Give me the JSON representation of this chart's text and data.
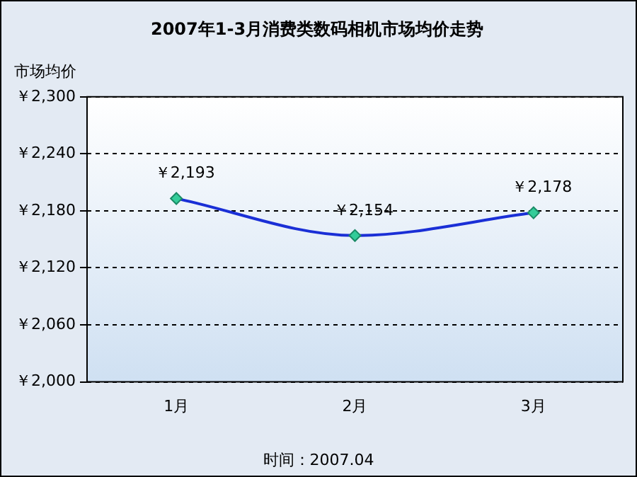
{
  "chart_data": {
    "type": "line",
    "title": "2007年1-3月消费类数码相机市场均价走势",
    "ylabel": "市场均价",
    "categories": [
      "1月",
      "2月",
      "3月"
    ],
    "series": [
      {
        "color": "#1a2fd6",
        "values": [
          2193,
          2154,
          2178
        ],
        "value_labels": [
          "￥2,193",
          "￥2,154",
          "￥2,178"
        ]
      }
    ],
    "ylim": [
      2000,
      2300
    ],
    "yticks": [
      {
        "value": 2000,
        "label": "￥2,000"
      },
      {
        "value": 2060,
        "label": "￥2,060"
      },
      {
        "value": 2120,
        "label": "￥2,120"
      },
      {
        "value": 2180,
        "label": "￥2,180"
      },
      {
        "value": 2240,
        "label": "￥2,240"
      },
      {
        "value": 2300,
        "label": "￥2,300"
      }
    ],
    "grid": "y",
    "legend": false,
    "marker": "diamond",
    "line_style": "solid",
    "annotations": [
      "时间：2007.04"
    ]
  }
}
